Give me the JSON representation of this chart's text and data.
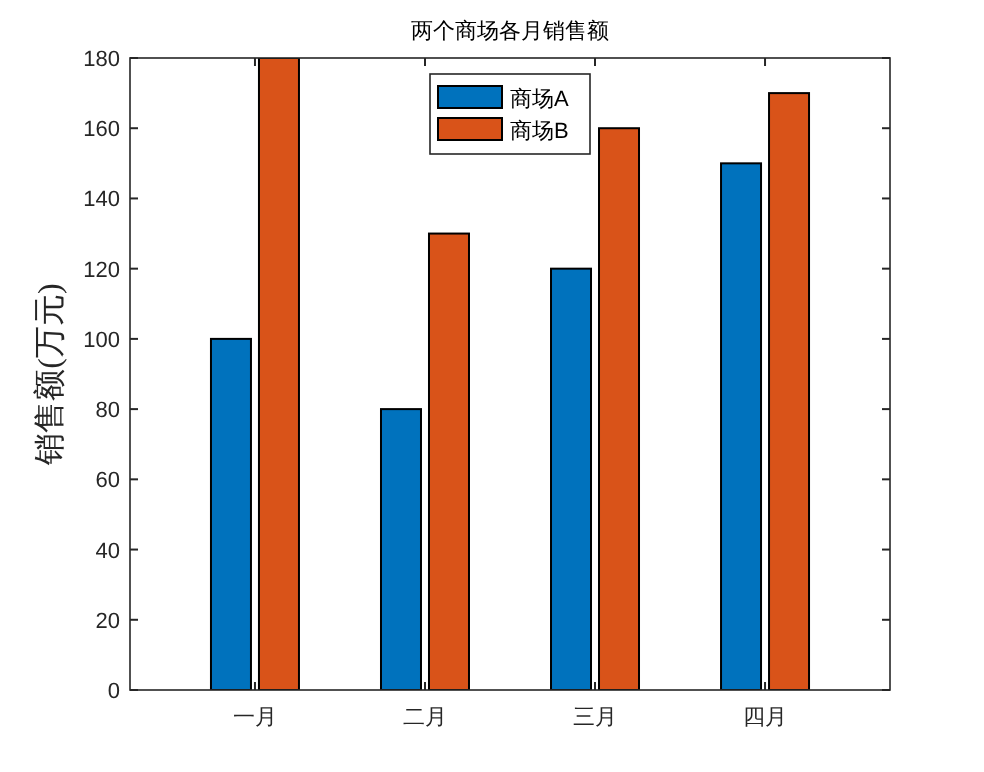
{
  "chart_data": {
    "type": "bar",
    "title": "两个商场各月销售额",
    "ylabel": "销售额(万元)",
    "categories": [
      "一月",
      "二月",
      "三月",
      "四月"
    ],
    "series": [
      {
        "name": "商场A",
        "color": "#0072bd",
        "values": [
          100,
          80,
          120,
          150
        ]
      },
      {
        "name": "商场B",
        "color": "#d95319",
        "values": [
          180,
          130,
          160,
          170
        ]
      }
    ],
    "ylim": [
      0,
      180
    ],
    "yticks": [
      0,
      20,
      40,
      60,
      80,
      100,
      120,
      140,
      160,
      180
    ],
    "legend": "top",
    "grid": false
  }
}
